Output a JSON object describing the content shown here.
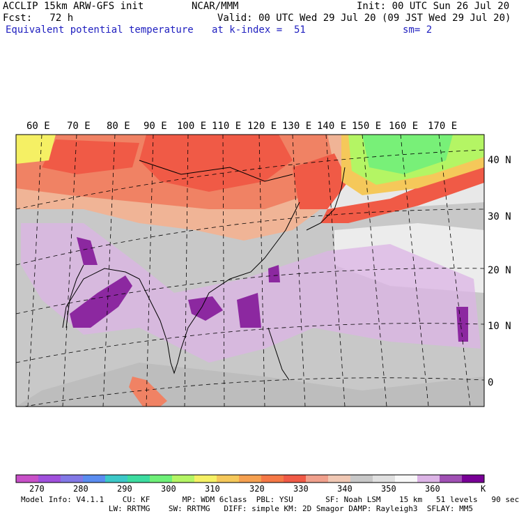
{
  "header": {
    "left_line1": "ACCLIP 15km ARW-GFS init",
    "center_line1": "NCAR/MMM",
    "right_line1": "Init: 00 UTC Sun 26 Jul 20",
    "left_line2": "Fcst:   72 h",
    "right_line2": "Valid: 00 UTC Wed 29 Jul 20 (09 JST Wed 29 Jul 20)",
    "field_name": "Equivalent potential temperature",
    "level": "at k-index =  51",
    "smoothing": "sm= 2"
  },
  "map": {
    "lon_labels": [
      "60 E",
      "70 E",
      "80 E",
      "90 E",
      "100 E",
      "110 E",
      "120 E",
      "130 E",
      "140 E",
      "150 E",
      "160 E",
      "170 E"
    ],
    "lat_labels": [
      "40 N",
      "30 N",
      "20 N",
      "10 N",
      "0"
    ],
    "colors": {
      "cold": "#e8e8e8",
      "gray": "#c0c0c0",
      "lavender": "#dcb4e6",
      "purple": "#8c28a0",
      "peach": "#f0b496",
      "salmon": "#f08264",
      "red": "#f05a46",
      "yellow": "#f5f064",
      "green": "#78f078"
    }
  },
  "colorbar": {
    "colors": [
      "#c850c8",
      "#a050dc",
      "#8278e6",
      "#5a8cf0",
      "#3cc8c8",
      "#3cdca0",
      "#6ef078",
      "#b4f564",
      "#f5f064",
      "#f5c85a",
      "#f5a050",
      "#f57846",
      "#f05a46",
      "#f0a08c",
      "#f0c8b4",
      "#c8c8c8",
      "#e0e0e0",
      "#f8f8f8",
      "#dcb4e6",
      "#a050b4",
      "#780096"
    ],
    "tick_labels": [
      "270",
      "280",
      "290",
      "300",
      "310",
      "320",
      "330",
      "340",
      "350",
      "360"
    ],
    "unit": "K"
  },
  "model_info": {
    "line1": "Model Info: V4.1.1    CU: KF       MP: WDM 6class  PBL: YSU       SF: Noah LSM    15 km   51 levels   90 sec",
    "line2": "                   LW: RRTMG    SW: RRTMG   DIFF: simple KM: 2D Smagor DAMP: Rayleigh3  SFLAY: MM5"
  }
}
